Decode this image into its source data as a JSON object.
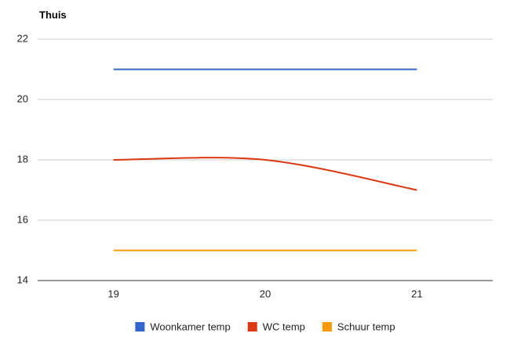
{
  "chart_data": {
    "type": "line",
    "title": "Thuis",
    "x": [
      19,
      20,
      21
    ],
    "xlim": [
      18.5,
      21.5
    ],
    "xticks": [
      19,
      20,
      21
    ],
    "ylim": [
      14,
      22
    ],
    "yticks": [
      14,
      16,
      18,
      20,
      22
    ],
    "grid": true,
    "smooth": true,
    "legend": "bottom",
    "series": [
      {
        "name": "Woonkamer temp",
        "color": "#3366cc",
        "values": [
          21,
          21,
          21
        ]
      },
      {
        "name": "WC temp",
        "color": "#dc3912",
        "values": [
          18,
          18,
          17
        ]
      },
      {
        "name": "Schuur temp",
        "color": "#ff9900",
        "values": [
          15,
          15,
          15
        ]
      }
    ]
  }
}
